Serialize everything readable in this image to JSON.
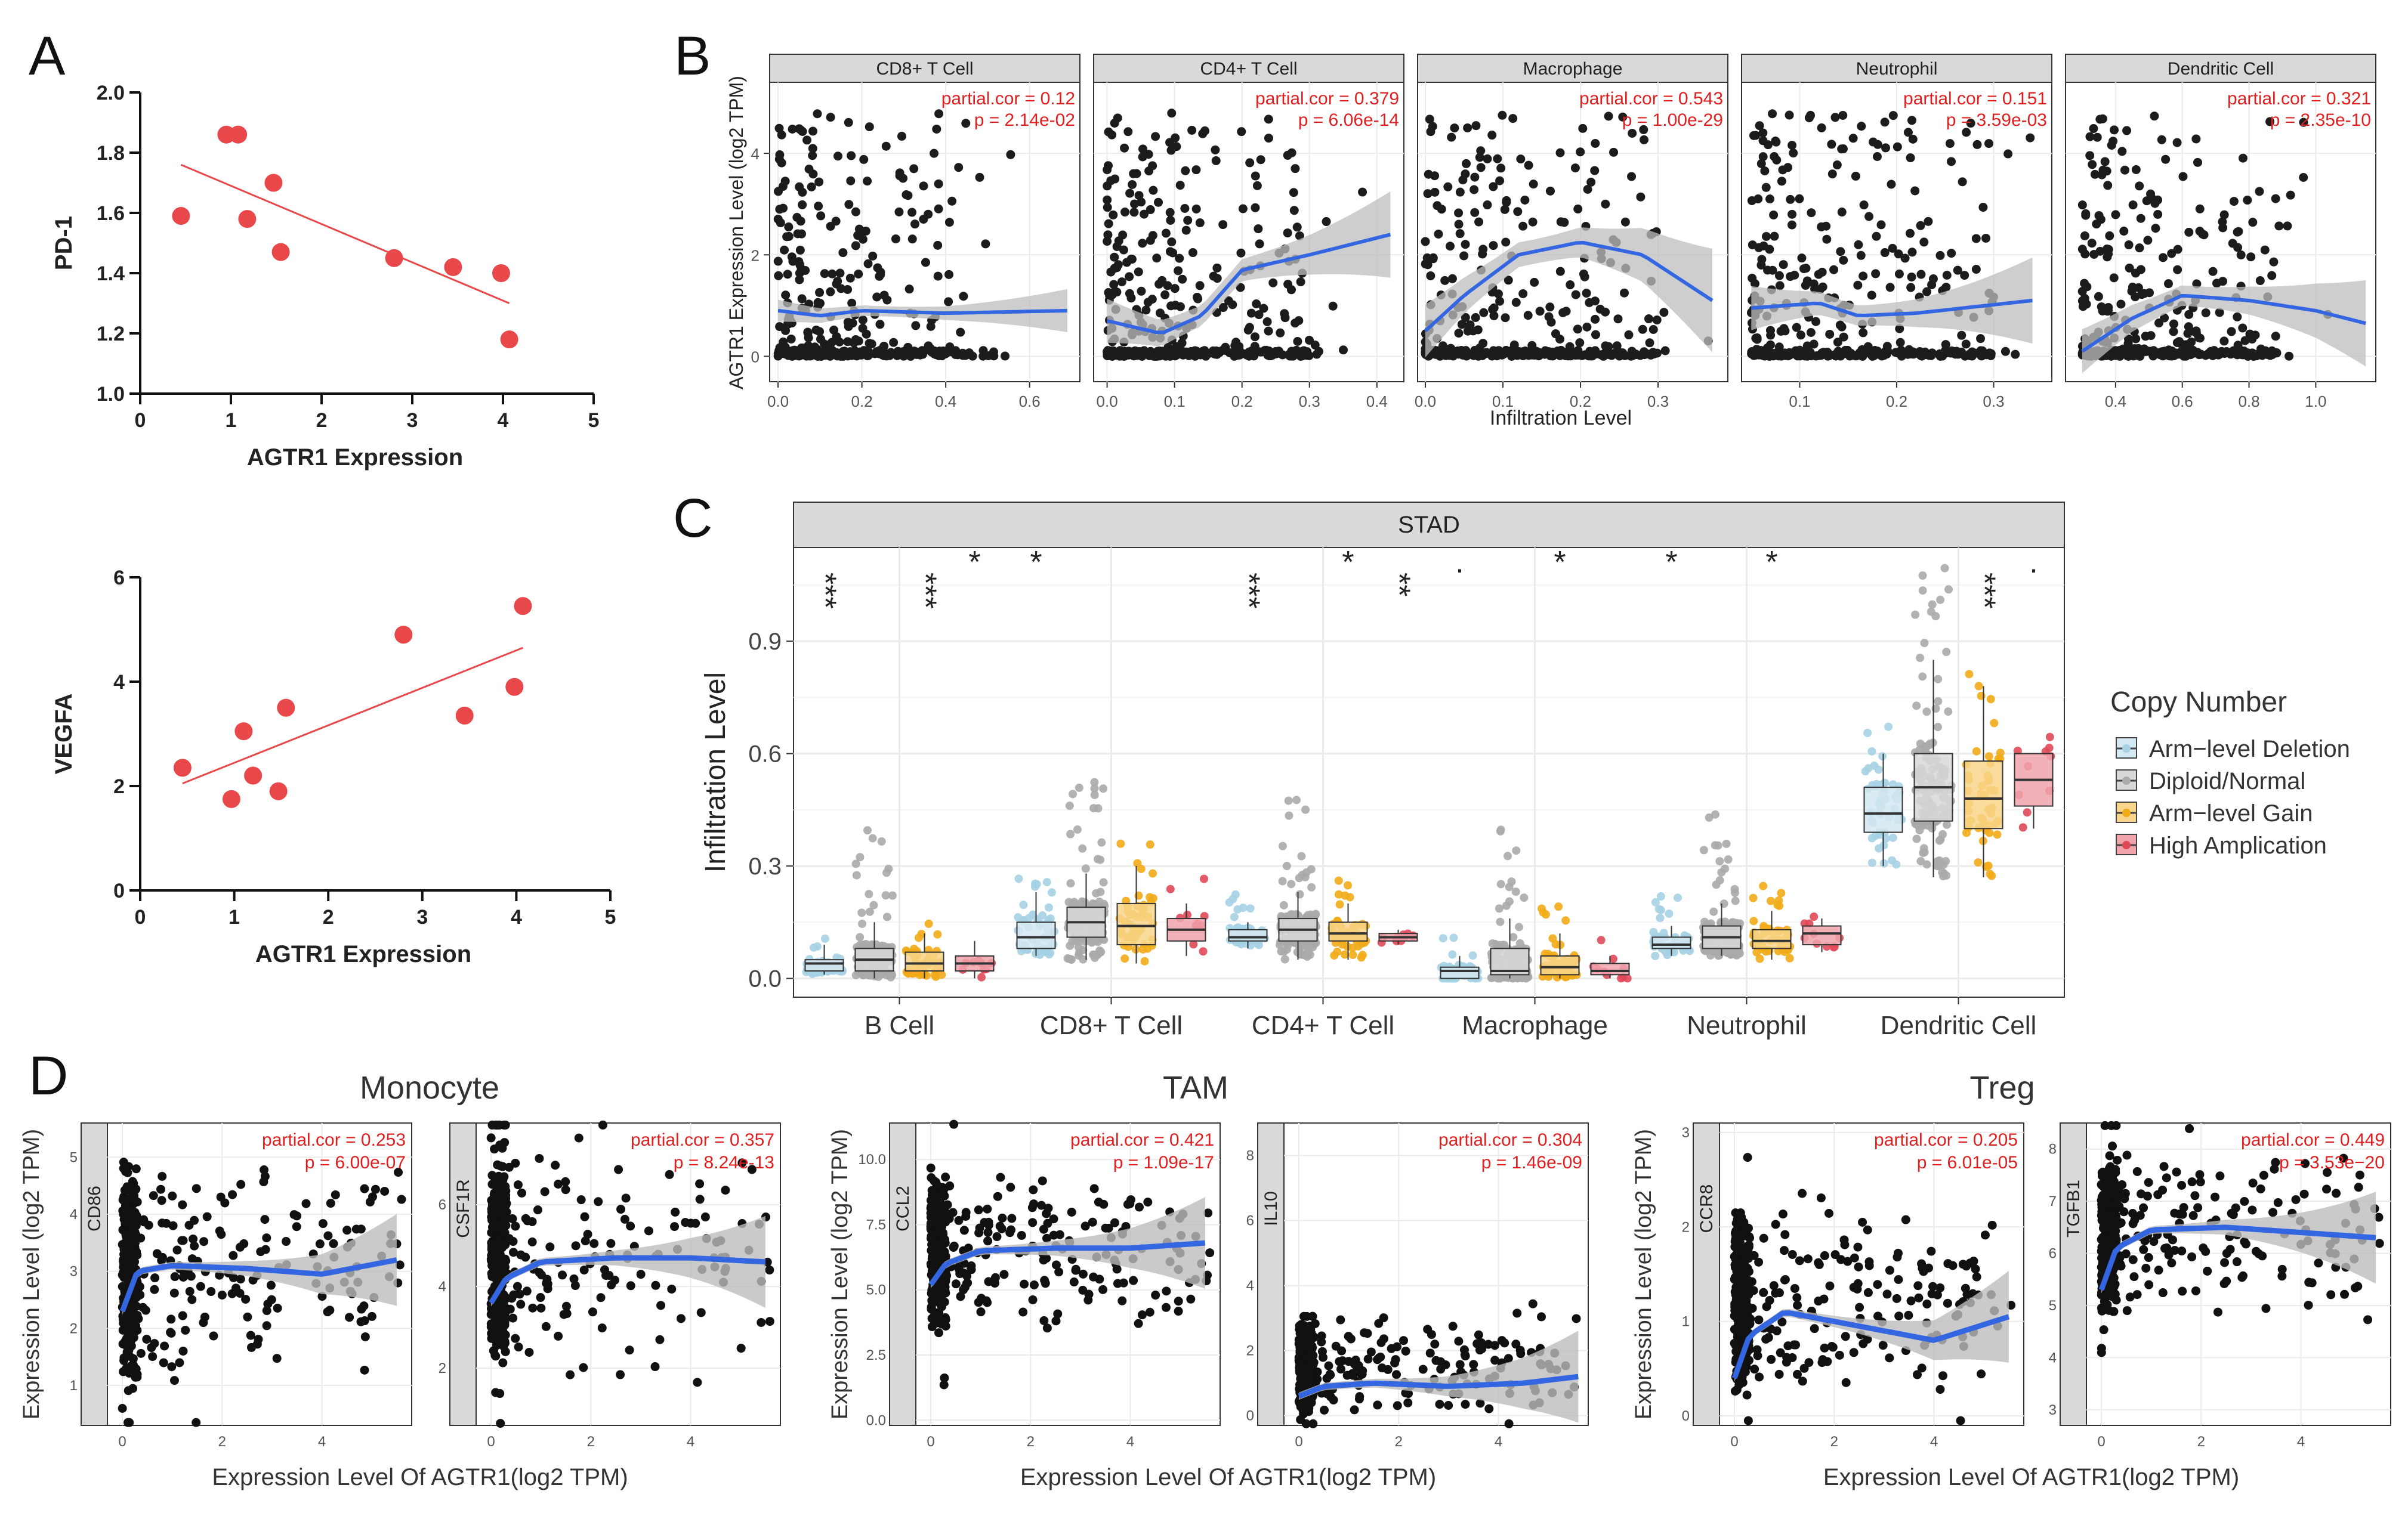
{
  "panel_letters": {
    "A": "A",
    "B": "B",
    "C": "C",
    "D": "D"
  },
  "chart_data": [
    {
      "id": "A1",
      "type": "scatter",
      "panel": "A",
      "xlabel": "AGTR1 Expression",
      "ylabel": "PD-1",
      "xlim": [
        0,
        5
      ],
      "ylim": [
        1.0,
        2.0
      ],
      "xticks": [
        "0",
        "1",
        "2",
        "3",
        "4",
        "5"
      ],
      "yticks": [
        "1.0",
        "1.2",
        "1.4",
        "1.6",
        "1.8",
        "2.0"
      ],
      "x": [
        0.45,
        0.95,
        1.08,
        1.18,
        1.47,
        1.55,
        2.8,
        3.45,
        3.98,
        4.07
      ],
      "y": [
        1.59,
        1.86,
        1.86,
        1.58,
        1.7,
        1.47,
        1.45,
        1.42,
        1.4,
        1.18
      ],
      "fit": {
        "x": [
          0.45,
          4.07
        ],
        "y": [
          1.76,
          1.3
        ]
      },
      "point_color": "#e8484a"
    },
    {
      "id": "A2",
      "type": "scatter",
      "panel": "A",
      "xlabel": "AGTR1 Expression",
      "ylabel": "VEGFA",
      "xlim": [
        0,
        5
      ],
      "ylim": [
        0,
        6
      ],
      "xticks": [
        "0",
        "1",
        "2",
        "3",
        "4",
        "5"
      ],
      "yticks": [
        "0",
        "2",
        "4",
        "6"
      ],
      "x": [
        0.45,
        0.97,
        1.1,
        1.2,
        1.47,
        1.55,
        2.8,
        3.45,
        3.98,
        4.07
      ],
      "y": [
        2.35,
        1.75,
        3.05,
        2.2,
        1.9,
        3.5,
        4.9,
        3.35,
        3.9,
        5.45
      ],
      "fit": {
        "x": [
          0.45,
          4.07
        ],
        "y": [
          2.05,
          4.65
        ]
      },
      "point_color": "#e8484a"
    },
    {
      "id": "B",
      "type": "scatter",
      "panel": "B",
      "ylabel": "AGTR1 Expression Level (log2 TPM)",
      "xlabel": "Infiltration Level",
      "ylim": [
        -0.5,
        5.4
      ],
      "yticks": [
        "0",
        "2",
        "4"
      ],
      "facets": [
        {
          "title": "CD8+ T Cell",
          "cor_text": "partial.cor = 0.12",
          "p_text": "p = 2.14e-02",
          "xlim": [
            -0.02,
            0.72
          ],
          "xticks": [
            "0.0",
            "0.2",
            "0.4",
            "0.6"
          ],
          "dist": [
            0.0,
            0.45
          ],
          "curve": [
            [
              0.0,
              0.9
            ],
            [
              0.1,
              0.8
            ],
            [
              0.2,
              0.9
            ],
            [
              0.4,
              0.85
            ],
            [
              0.69,
              0.9
            ]
          ],
          "band": 0.25
        },
        {
          "title": "CD4+ T Cell",
          "cor_text": "partial.cor = 0.379",
          "p_text": "p = 6.06e-14",
          "xlim": [
            -0.02,
            0.44
          ],
          "xticks": [
            "0.0",
            "0.1",
            "0.2",
            "0.3",
            "0.4"
          ],
          "dist": [
            0.0,
            0.3
          ],
          "curve": [
            [
              0.0,
              0.7
            ],
            [
              0.08,
              0.45
            ],
            [
              0.14,
              0.8
            ],
            [
              0.2,
              1.7
            ],
            [
              0.3,
              2.0
            ],
            [
              0.42,
              2.4
            ]
          ],
          "band": 0.5
        },
        {
          "title": "Macrophage",
          "cor_text": "partial.cor = 0.543",
          "p_text": "p = 1.00e-29",
          "xlim": [
            -0.01,
            0.39
          ],
          "xticks": [
            "0.0",
            "0.1",
            "0.2",
            "0.3"
          ],
          "dist": [
            0.0,
            0.3
          ],
          "curve": [
            [
              0.0,
              0.5
            ],
            [
              0.05,
              1.2
            ],
            [
              0.12,
              2.0
            ],
            [
              0.2,
              2.25
            ],
            [
              0.28,
              2.0
            ],
            [
              0.37,
              1.1
            ]
          ],
          "band": 0.6
        },
        {
          "title": "Neutrophil",
          "cor_text": "partial.cor = 0.151",
          "p_text": "p = 3.59e-03",
          "xlim": [
            0.04,
            0.36
          ],
          "xticks": [
            "0.1",
            "0.2",
            "0.3"
          ],
          "dist": [
            0.05,
            0.3
          ],
          "curve": [
            [
              0.05,
              0.95
            ],
            [
              0.12,
              1.05
            ],
            [
              0.16,
              0.8
            ],
            [
              0.22,
              0.85
            ],
            [
              0.34,
              1.1
            ]
          ],
          "band": 0.5
        },
        {
          "title": "Dendritic Cell",
          "cor_text": "partial.cor = 0.321",
          "p_text": "p = 2.35e-10",
          "xlim": [
            0.25,
            1.18
          ],
          "xticks": [
            "0.4",
            "0.6",
            "0.8",
            "1.0"
          ],
          "dist": [
            0.3,
            0.9
          ],
          "curve": [
            [
              0.3,
              0.1
            ],
            [
              0.45,
              0.75
            ],
            [
              0.6,
              1.2
            ],
            [
              0.8,
              1.1
            ],
            [
              1.0,
              0.9
            ],
            [
              1.15,
              0.65
            ]
          ],
          "band": 0.5
        }
      ]
    },
    {
      "id": "C",
      "type": "box",
      "panel": "C",
      "title": "STAD",
      "ylabel": "Infiltration Level",
      "ylim": [
        -0.05,
        1.15
      ],
      "yticks": [
        "0.0",
        "0.3",
        "0.6",
        "0.9"
      ],
      "categories": [
        "B Cell",
        "CD8+ T Cell",
        "CD4+ T Cell",
        "Macrophage",
        "Neutrophil",
        "Dendritic Cell"
      ],
      "legend": {
        "title": "Copy Number",
        "labels": [
          "Arm−level Deletion",
          "Diploid/Normal",
          "Arm−level Gain",
          "High Amplication"
        ],
        "colors": [
          "#a6d2e4",
          "#aaaaaa",
          "#f2ab18",
          "#e04858"
        ],
        "fills": [
          "#d3e8f1",
          "#d8d8d8",
          "#f8d58a",
          "#f0a3ab"
        ]
      },
      "significance": [
        "***",
        "***",
        "*",
        "*",
        "",
        "",
        "***",
        "*",
        "**",
        ".",
        "*",
        "",
        "*",
        "*",
        "",
        "",
        "***",
        "."
      ],
      "boxes": [
        [
          [
            0.01,
            0.02,
            0.04,
            0.05,
            0.09
          ],
          [
            0.0,
            0.02,
            0.05,
            0.08,
            0.15
          ],
          [
            0.0,
            0.02,
            0.04,
            0.07,
            0.12
          ],
          [
            0.0,
            0.02,
            0.04,
            0.06,
            0.1
          ]
        ],
        [
          [
            0.06,
            0.08,
            0.11,
            0.15,
            0.23
          ],
          [
            0.05,
            0.11,
            0.15,
            0.19,
            0.28
          ],
          [
            0.04,
            0.09,
            0.14,
            0.2,
            0.3
          ],
          [
            0.06,
            0.1,
            0.13,
            0.16,
            0.2
          ]
        ],
        [
          [
            0.08,
            0.1,
            0.11,
            0.13,
            0.15
          ],
          [
            0.05,
            0.1,
            0.13,
            0.16,
            0.23
          ],
          [
            0.05,
            0.1,
            0.12,
            0.15,
            0.2
          ],
          [
            0.09,
            0.1,
            0.11,
            0.12,
            0.13
          ]
        ],
        [
          [
            0.0,
            0.0,
            0.02,
            0.03,
            0.06
          ],
          [
            0.0,
            0.01,
            0.02,
            0.08,
            0.16
          ],
          [
            0.0,
            0.01,
            0.03,
            0.06,
            0.12
          ],
          [
            0.0,
            0.01,
            0.02,
            0.04,
            0.06
          ]
        ],
        [
          [
            0.06,
            0.08,
            0.09,
            0.11,
            0.14
          ],
          [
            0.06,
            0.08,
            0.11,
            0.14,
            0.2
          ],
          [
            0.05,
            0.08,
            0.1,
            0.13,
            0.18
          ],
          [
            0.07,
            0.09,
            0.12,
            0.14,
            0.16
          ]
        ],
        [
          [
            0.3,
            0.39,
            0.44,
            0.51,
            0.6
          ],
          [
            0.27,
            0.42,
            0.51,
            0.6,
            0.85
          ],
          [
            0.27,
            0.4,
            0.48,
            0.58,
            0.78
          ],
          [
            0.4,
            0.46,
            0.53,
            0.6,
            0.6
          ]
        ]
      ]
    },
    {
      "id": "D",
      "type": "scatter",
      "panel": "D",
      "xlabel": "Expression Level Of AGTR1(log2 TPM)",
      "ylabel": "Expression Level (log2 TPM)",
      "groups": [
        "Monocyte",
        "TAM",
        "Treg"
      ],
      "facets": [
        {
          "gene": "CD86",
          "cor_text": "partial.cor = 0.253",
          "p_text": "p = 6.00e-07",
          "xlim": [
            -0.3,
            5.8
          ],
          "ylim": [
            0.3,
            5.6
          ],
          "xticks": [
            "0",
            "2",
            "4"
          ],
          "yticks": [
            "1",
            "2",
            "3",
            "4",
            "5"
          ],
          "dist": [
            1.0,
            5.0
          ],
          "curve": [
            [
              0,
              2.3
            ],
            [
              0.3,
              3.0
            ],
            [
              1,
              3.1
            ],
            [
              2.5,
              3.05
            ],
            [
              4,
              2.95
            ],
            [
              5.5,
              3.2
            ]
          ]
        },
        {
          "gene": "CSF1R",
          "cor_text": "partial.cor = 0.357",
          "p_text": "p = 8.24e-13",
          "xlim": [
            -0.3,
            5.8
          ],
          "ylim": [
            0.6,
            8.0
          ],
          "xticks": [
            "0",
            "2",
            "4"
          ],
          "yticks": [
            "2",
            "4",
            "6"
          ],
          "dist": [
            2.0,
            7.5
          ],
          "curve": [
            [
              0,
              3.6
            ],
            [
              0.3,
              4.2
            ],
            [
              1,
              4.6
            ],
            [
              2.5,
              4.7
            ],
            [
              4,
              4.7
            ],
            [
              5.5,
              4.6
            ]
          ]
        },
        {
          "gene": "CCL2",
          "cor_text": "partial.cor = 0.421",
          "p_text": "p = 1.09e-17",
          "xlim": [
            -0.3,
            5.8
          ],
          "ylim": [
            -0.2,
            11.4
          ],
          "xticks": [
            "0",
            "2",
            "4"
          ],
          "yticks": [
            "0.0",
            "2.5",
            "5.0",
            "7.5",
            "10.0"
          ],
          "dist": [
            3.5,
            9.5
          ],
          "curve": [
            [
              0,
              5.2
            ],
            [
              0.3,
              6.0
            ],
            [
              1,
              6.5
            ],
            [
              2.5,
              6.6
            ],
            [
              4,
              6.6
            ],
            [
              5.5,
              6.8
            ]
          ]
        },
        {
          "gene": "IL10",
          "cor_text": "partial.cor = 0.304",
          "p_text": "p = 1.46e-09",
          "xlim": [
            -0.3,
            5.8
          ],
          "ylim": [
            -0.3,
            9.0
          ],
          "xticks": [
            "0",
            "2",
            "4"
          ],
          "yticks": [
            "0",
            "2",
            "4",
            "6",
            "8"
          ],
          "dist": [
            0.0,
            3.0
          ],
          "curve": [
            [
              0,
              0.6
            ],
            [
              0.5,
              0.9
            ],
            [
              1.5,
              1.0
            ],
            [
              3,
              0.9
            ],
            [
              4.5,
              1.0
            ],
            [
              5.6,
              1.2
            ]
          ]
        },
        {
          "gene": "CCR8",
          "cor_text": "partial.cor = 0.205",
          "p_text": "p = 6.01e-05",
          "xlim": [
            -0.3,
            5.8
          ],
          "ylim": [
            -0.1,
            3.1
          ],
          "xticks": [
            "0",
            "2",
            "4"
          ],
          "yticks": [
            "0",
            "1",
            "2",
            "3"
          ],
          "dist": [
            0.2,
            2.2
          ],
          "curve": [
            [
              0,
              0.4
            ],
            [
              0.3,
              0.85
            ],
            [
              1,
              1.1
            ],
            [
              2.5,
              0.95
            ],
            [
              4,
              0.8
            ],
            [
              5.5,
              1.05
            ]
          ]
        },
        {
          "gene": "TGFB1",
          "cor_text": "partial.cor = 0.449",
          "p_text": "p = 3.53e−20",
          "xlim": [
            -0.3,
            5.8
          ],
          "ylim": [
            2.7,
            8.5
          ],
          "xticks": [
            "0",
            "2",
            "4"
          ],
          "yticks": [
            "3",
            "4",
            "5",
            "6",
            "7",
            "8"
          ],
          "dist": [
            4.8,
            8.0
          ],
          "curve": [
            [
              0,
              5.3
            ],
            [
              0.3,
              6.1
            ],
            [
              1,
              6.45
            ],
            [
              2.5,
              6.5
            ],
            [
              4,
              6.4
            ],
            [
              5.5,
              6.3
            ]
          ]
        }
      ]
    }
  ]
}
